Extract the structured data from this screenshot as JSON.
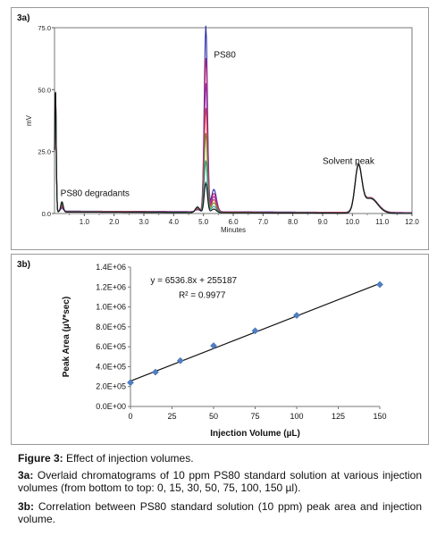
{
  "chart_data": [
    {
      "type": "line",
      "panel_label": "3a)",
      "xlabel": "Minutes",
      "ylabel": "mV",
      "xlim": [
        0,
        12
      ],
      "ylim": [
        0,
        75
      ],
      "x_ticks": [
        "1.0",
        "2.0",
        "3.0",
        "4.0",
        "5.0",
        "6.0",
        "7.0",
        "8.0",
        "9.0",
        "10.0",
        "11.0",
        "12.0"
      ],
      "y_ticks": [
        "0.0",
        "25.0",
        "50.0",
        "75.0"
      ],
      "annotations": [
        "PS80",
        "PS80 degradants",
        "Solvent peak"
      ],
      "series": [
        {
          "peak_height": 75.0,
          "color": "#2a2aa8"
        },
        {
          "peak_height": 62.0,
          "color": "#d4286e"
        },
        {
          "peak_height": 52.0,
          "color": "#8e2ca8"
        },
        {
          "peak_height": 42.0,
          "color": "#d44040"
        },
        {
          "peak_height": 32.0,
          "color": "#6e8a2a"
        },
        {
          "peak_height": 21.0,
          "color": "#2a8a8a"
        },
        {
          "peak_height": 12.0,
          "color": "#111111"
        }
      ]
    },
    {
      "type": "scatter",
      "panel_label": "3b)",
      "xlabel": "Injection Volume (µL)",
      "ylabel": "Peak Area (µV*sec)",
      "xlim": [
        0,
        150
      ],
      "ylim": [
        0,
        1400000
      ],
      "x_ticks": [
        "0",
        "25",
        "50",
        "75",
        "100",
        "125",
        "150"
      ],
      "y_ticks": [
        "0.0E+00",
        "2.0E+05",
        "4.0E+05",
        "6.0E+05",
        "8.0E+05",
        "1.0E+06",
        "1.2E+06",
        "1.4E+06"
      ],
      "x": [
        0,
        15,
        30,
        50,
        75,
        100,
        150
      ],
      "y": [
        240000,
        345000,
        460000,
        610000,
        760000,
        915000,
        1225000
      ],
      "trendline": {
        "slope": 6536.8,
        "intercept": 255187
      },
      "equation": "y = 6536.8x + 255187",
      "r_squared": "R² = 0.9977",
      "marker_color": "#4f7fc4"
    }
  ],
  "caption": {
    "fig_label": "Figure 3:",
    "fig_text": " Effect of injection volumes.",
    "a_label": "3a:",
    "a_text": " Overlaid chromatograms of 10 ppm PS80 standard solution at various injection volumes (from bottom to top: 0, 15, 30, 50, 75, 100, 150 µl).",
    "b_label": "3b:",
    "b_text": " Correlation between PS80 standard solution (10 ppm) peak area and injection volume."
  }
}
